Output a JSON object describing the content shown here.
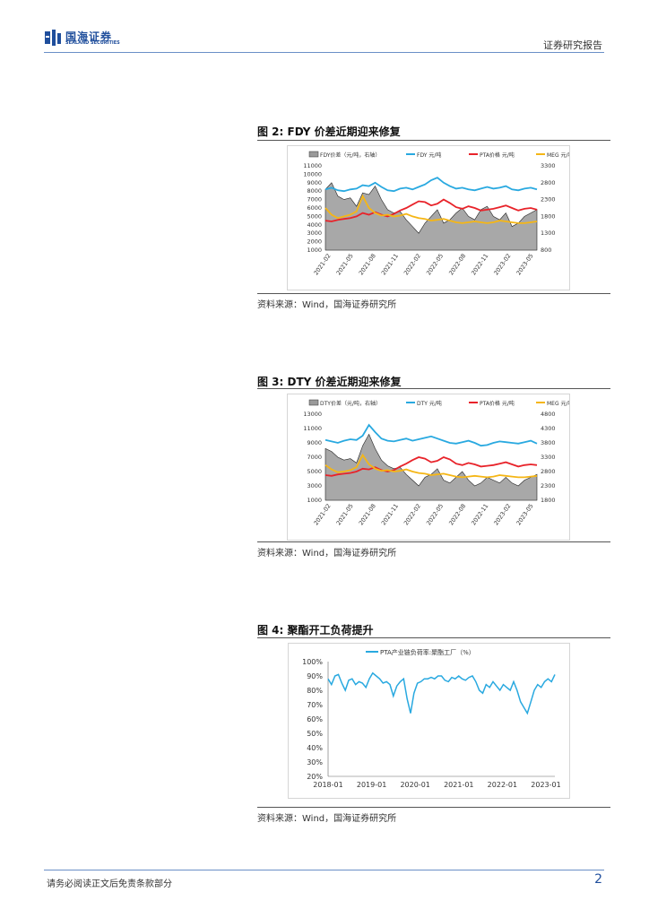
{
  "header": {
    "logo_cn": "国海证券",
    "logo_en": "SEALAND SECURITIES",
    "report_type": "证券研究报告"
  },
  "figures": [
    {
      "title": "图 2:  FDY 价差近期迎来修复",
      "source": "资料来源：Wind，国海证券研究所",
      "chart_data": {
        "type": "line",
        "legend": [
          "FDY价差（元/吨，右轴）",
          "FDY 元/吨",
          "PTA价格 元/吨",
          "MEG 元/吨"
        ],
        "y_left_ticks": [
          "11000",
          "10000",
          "9000",
          "8000",
          "7000",
          "6000",
          "5000",
          "4000",
          "3000",
          "2000",
          "1000"
        ],
        "y_right_ticks": [
          "3300",
          "2800",
          "2300",
          "1800",
          "1300",
          "800"
        ],
        "x_ticks": [
          "2021-02",
          "2021-05",
          "2021-08",
          "2021-11",
          "2022-02",
          "2022-05",
          "2022-08",
          "2022-11",
          "2023-02",
          "2023-05"
        ],
        "ylim_left": [
          1000,
          11000
        ],
        "ylim_right": [
          800,
          3300
        ],
        "series": [
          {
            "name": "FDY 元/吨",
            "color": "#29a9e0",
            "values": [
              8200,
              8400,
              8100,
              8000,
              8200,
              8300,
              8700,
              8600,
              9000,
              8500,
              8100,
              8000,
              8300,
              8400,
              8200,
              8500,
              8800,
              9300,
              9600,
              9000,
              8600,
              8300,
              8400,
              8200,
              8100,
              8300,
              8500,
              8300,
              8400,
              8600,
              8200,
              8100,
              8300,
              8400,
              8200
            ]
          },
          {
            "name": "PTA价格 元/吨",
            "color": "#e8232a",
            "values": [
              4500,
              4400,
              4600,
              4700,
              4800,
              5000,
              5400,
              5200,
              5500,
              5200,
              5000,
              5300,
              5700,
              6000,
              6400,
              6800,
              6700,
              6300,
              6500,
              7000,
              6600,
              6100,
              5900,
              6200,
              6000,
              5700,
              5800,
              5900,
              6100,
              6300,
              6000,
              5700,
              5900,
              6000,
              5800
            ]
          },
          {
            "name": "MEG 元/吨",
            "color": "#f5b616",
            "values": [
              6000,
              5200,
              4800,
              5000,
              5200,
              5600,
              7400,
              6000,
              5400,
              5100,
              5200,
              5000,
              5100,
              5300,
              5000,
              4800,
              4700,
              4500,
              4600,
              4700,
              4500,
              4300,
              4200,
              4300,
              4400,
              4300,
              4200,
              4300,
              4500,
              4400,
              4300,
              4200,
              4200,
              4300,
              4400
            ]
          },
          {
            "name": "FDY价差（元/吨，右轴）",
            "color": "#9a9a9a",
            "values": [
              2600,
              2800,
              2400,
              2300,
              2350,
              2100,
              2500,
              2450,
              2700,
              2300,
              2000,
              1900,
              1950,
              1700,
              1500,
              1300,
              1600,
              1800,
              2000,
              1600,
              1700,
              1900,
              2050,
              1800,
              1700,
              2000,
              2100,
              1800,
              1700,
              1900,
              1500,
              1600,
              1800,
              1900,
              2000
            ]
          }
        ]
      }
    },
    {
      "title": "图 3:  DTY 价差近期迎来修复",
      "source": "资料来源：Wind，国海证券研究所",
      "chart_data": {
        "type": "line",
        "legend": [
          "DTY价差（元/吨，右轴）",
          "DTY 元/吨",
          "PTA价格 元/吨",
          "MEG 元/吨"
        ],
        "y_left_ticks": [
          "13000",
          "11000",
          "9000",
          "7000",
          "5000",
          "3000",
          "1000"
        ],
        "y_right_ticks": [
          "4800",
          "4300",
          "3800",
          "3300",
          "2800",
          "2300",
          "1800"
        ],
        "x_ticks": [
          "2021-02",
          "2021-05",
          "2021-08",
          "2021-11",
          "2022-02",
          "2022-05",
          "2022-08",
          "2022-11",
          "2023-02",
          "2023-05"
        ],
        "ylim_left": [
          1000,
          13000
        ],
        "ylim_right": [
          1800,
          4800
        ],
        "series": [
          {
            "name": "DTY 元/吨",
            "color": "#29a9e0",
            "values": [
              9400,
              9200,
              9000,
              9300,
              9500,
              9400,
              10000,
              11500,
              10500,
              9600,
              9300,
              9200,
              9400,
              9600,
              9300,
              9500,
              9700,
              9900,
              9600,
              9300,
              9000,
              8900,
              9100,
              9300,
              9000,
              8600,
              8700,
              9000,
              9200,
              9100,
              9000,
              8900,
              9100,
              9300,
              8900
            ]
          },
          {
            "name": "PTA价格 元/吨",
            "color": "#e8232a",
            "values": [
              4500,
              4400,
              4600,
              4700,
              4800,
              5000,
              5400,
              5300,
              5600,
              5200,
              5000,
              5200,
              5700,
              6100,
              6600,
              7000,
              6800,
              6300,
              6500,
              7000,
              6700,
              6100,
              5900,
              6200,
              6000,
              5700,
              5800,
              5900,
              6100,
              6300,
              6000,
              5700,
              5900,
              6000,
              5900
            ]
          },
          {
            "name": "MEG 元/吨",
            "color": "#f5b616",
            "values": [
              5900,
              5300,
              4900,
              5000,
              5200,
              5600,
              7300,
              6000,
              5400,
              5100,
              5200,
              5000,
              5100,
              5300,
              5000,
              4800,
              4700,
              4500,
              4600,
              4700,
              4500,
              4300,
              4200,
              4300,
              4400,
              4300,
              4200,
              4300,
              4500,
              4400,
              4300,
              4200,
              4200,
              4300,
              4400
            ]
          },
          {
            "name": "DTY价差（元/吨，右轴）",
            "color": "#9a9a9a",
            "values": [
              3600,
              3500,
              3300,
              3200,
              3250,
              3100,
              3700,
              4100,
              3600,
              3200,
              3000,
              2900,
              2950,
              2700,
              2500,
              2300,
              2600,
              2700,
              2900,
              2500,
              2400,
              2600,
              2800,
              2500,
              2300,
              2400,
              2600,
              2500,
              2400,
              2600,
              2400,
              2300,
              2500,
              2600,
              2700
            ]
          }
        ]
      }
    },
    {
      "title": "图 4:  聚酯开工负荷提升",
      "source": "资料来源：Wind，国海证券研究所",
      "chart_data": {
        "type": "line",
        "legend": [
          "PTA产业链负荷率:聚酯工厂（%）"
        ],
        "y_ticks": [
          "100%",
          "90%",
          "80%",
          "70%",
          "60%",
          "50%",
          "40%",
          "30%",
          "20%"
        ],
        "x_ticks": [
          "2018-01",
          "2019-01",
          "2020-01",
          "2021-01",
          "2022-01",
          "2023-01"
        ],
        "ylim": [
          20,
          100
        ],
        "series": [
          {
            "name": "PTA产业链负荷率:聚酯工厂（%）",
            "color": "#29a9e0",
            "values": [
              88,
              84,
              90,
              91,
              85,
              80,
              87,
              88,
              84,
              86,
              85,
              82,
              88,
              92,
              90,
              88,
              85,
              86,
              84,
              76,
              83,
              86,
              88,
              74,
              64,
              78,
              85,
              86,
              88,
              88,
              89,
              88,
              90,
              90,
              87,
              86,
              89,
              88,
              90,
              88,
              87,
              89,
              90,
              86,
              80,
              78,
              84,
              82,
              86,
              83,
              80,
              84,
              82,
              80,
              86,
              80,
              72,
              68,
              64,
              72,
              80,
              84,
              82,
              86,
              88,
              86,
              91
            ]
          }
        ]
      }
    }
  ],
  "footer": {
    "disclaimer": "请务必阅读正文后免责条款部分",
    "page_number": "2"
  }
}
